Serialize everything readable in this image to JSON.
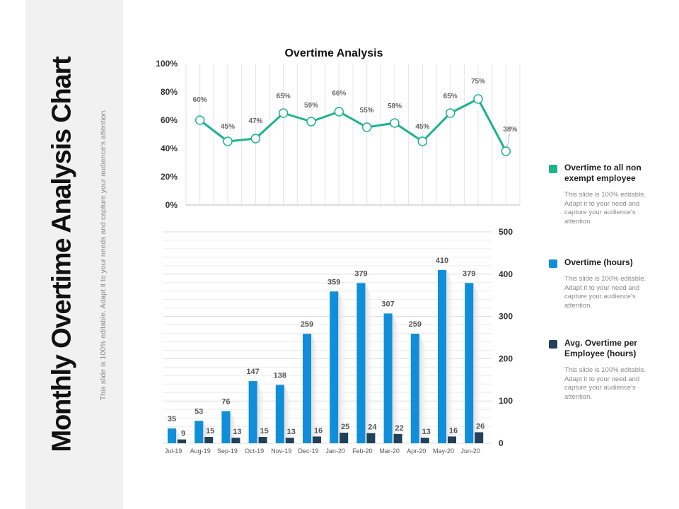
{
  "slide": {
    "title": "Monthly Overtime Analysis Chart",
    "subtitle": "This slide is 100% editable. Adapt it to your needs and capture your audience’s attention."
  },
  "legend": [
    {
      "label": "Overtime to all non exempt employee",
      "description": "This slide is 100% editable. Adapt it to your need and capture your audience's attention.",
      "color": "#1cb38f"
    },
    {
      "label": "Overtime (hours)",
      "description": "This slide is 100% editable. Adapt it to your need and capture your audience's attention.",
      "color": "#0f8fda"
    },
    {
      "label": "Avg. Overtime per Employee (hours)",
      "description": "This slide is 100% editable. Adapt it to your need and capture your audience's attention.",
      "color": "#22405a"
    }
  ],
  "chart_data": [
    {
      "type": "line",
      "title": "Overtime Analysis",
      "categories": [
        "Jul-19",
        "Aug-19",
        "Sep-19",
        "Oct-19",
        "Nov-19",
        "Dec-19",
        "Jan-20",
        "Feb-20",
        "Mar-20",
        "Apr-20",
        "May-20",
        "Jun-20"
      ],
      "series": [
        {
          "name": "Overtime to all non exempt employee",
          "values": [
            60,
            45,
            47,
            65,
            59,
            66,
            55,
            58,
            45,
            65,
            75,
            38
          ],
          "color": "#1cb38f"
        }
      ],
      "data_labels": [
        "60%",
        "45%",
        "47%",
        "65%",
        "59%",
        "66%",
        "55%",
        "58%",
        "45%",
        "65%",
        "75%",
        "38%"
      ],
      "yticks": [
        "0%",
        "20%",
        "40%",
        "60%",
        "80%",
        "100%"
      ],
      "ylim": [
        0,
        100
      ],
      "grid": "vertical"
    },
    {
      "type": "bar",
      "categories": [
        "Jul-19",
        "Aug-19",
        "Sep-19",
        "Oct-19",
        "Nov-19",
        "Dec-19",
        "Jan-20",
        "Feb-20",
        "Mar-20",
        "Apr-20",
        "May-20",
        "Jun-20"
      ],
      "series": [
        {
          "name": "Overtime (hours)",
          "values": [
            35,
            53,
            76,
            147,
            138,
            259,
            359,
            379,
            307,
            259,
            410,
            379
          ],
          "color": "#0f8fda"
        },
        {
          "name": "Avg. Overtime per Employee (hours)",
          "values": [
            9,
            15,
            13,
            15,
            13,
            16,
            25,
            24,
            22,
            13,
            16,
            26
          ],
          "color": "#22405a"
        }
      ],
      "yticks": [
        "0",
        "100",
        "200",
        "300",
        "400",
        "500"
      ],
      "ylim": [
        0,
        500
      ],
      "yaxis_position": "right",
      "grid": "horizontal"
    }
  ]
}
